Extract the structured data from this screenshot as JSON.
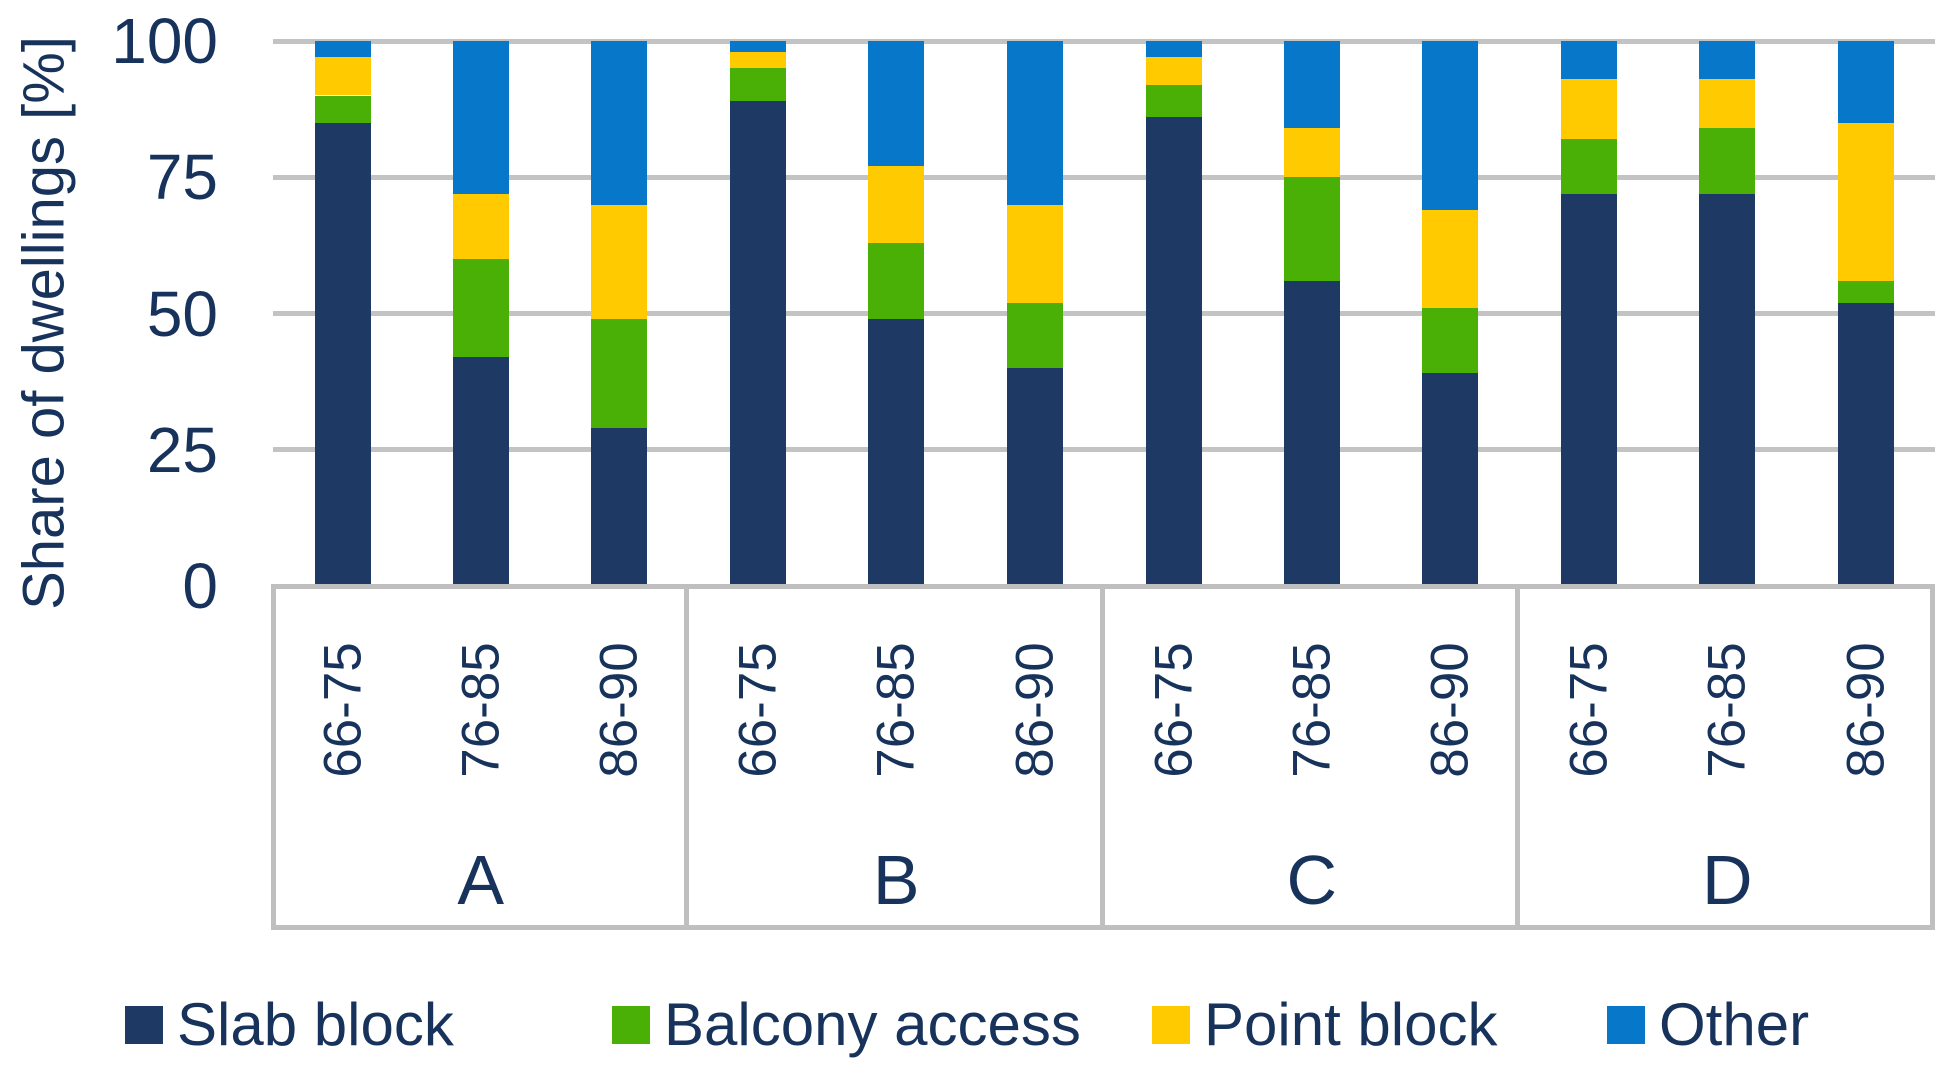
{
  "chart_data": {
    "type": "bar",
    "stacked": true,
    "title": "",
    "ylabel": "Share of dwellings [%]",
    "xlabel": "",
    "ylim": [
      0,
      100
    ],
    "y_ticks": [
      "100",
      "75",
      "50",
      "25",
      "0"
    ],
    "grid": true,
    "legend_position": "bottom",
    "groups": [
      {
        "label": "A",
        "periods": [
          "66-75",
          "76-85",
          "86-90"
        ]
      },
      {
        "label": "B",
        "periods": [
          "66-75",
          "76-85",
          "86-90"
        ]
      },
      {
        "label": "C",
        "periods": [
          "66-75",
          "76-85",
          "86-90"
        ]
      },
      {
        "label": "D",
        "periods": [
          "66-75",
          "76-85",
          "86-90"
        ]
      }
    ],
    "series": [
      {
        "name": "Slab block",
        "color": "#1e3a64",
        "values": [
          [
            85,
            42,
            29
          ],
          [
            89,
            49,
            40
          ],
          [
            86,
            56,
            39
          ],
          [
            72,
            72,
            52
          ]
        ]
      },
      {
        "name": "Balcony access",
        "color": "#4ab005",
        "values": [
          [
            5,
            18,
            20
          ],
          [
            6,
            14,
            12
          ],
          [
            6,
            19,
            12
          ],
          [
            10,
            12,
            4
          ]
        ]
      },
      {
        "name": "Point block",
        "color": "#ffca00",
        "values": [
          [
            7,
            12,
            21
          ],
          [
            3,
            14,
            18
          ],
          [
            5,
            9,
            18
          ],
          [
            11,
            9,
            29
          ]
        ]
      },
      {
        "name": "Other",
        "color": "#0778c9",
        "values": [
          [
            3,
            28,
            30
          ],
          [
            2,
            23,
            30
          ],
          [
            3,
            16,
            31
          ],
          [
            7,
            7,
            15
          ]
        ]
      }
    ],
    "note_colors": {
      "gridline": "#c3c3c3",
      "axis_box_border": "#bfbfbf",
      "text": "#17325b"
    }
  }
}
